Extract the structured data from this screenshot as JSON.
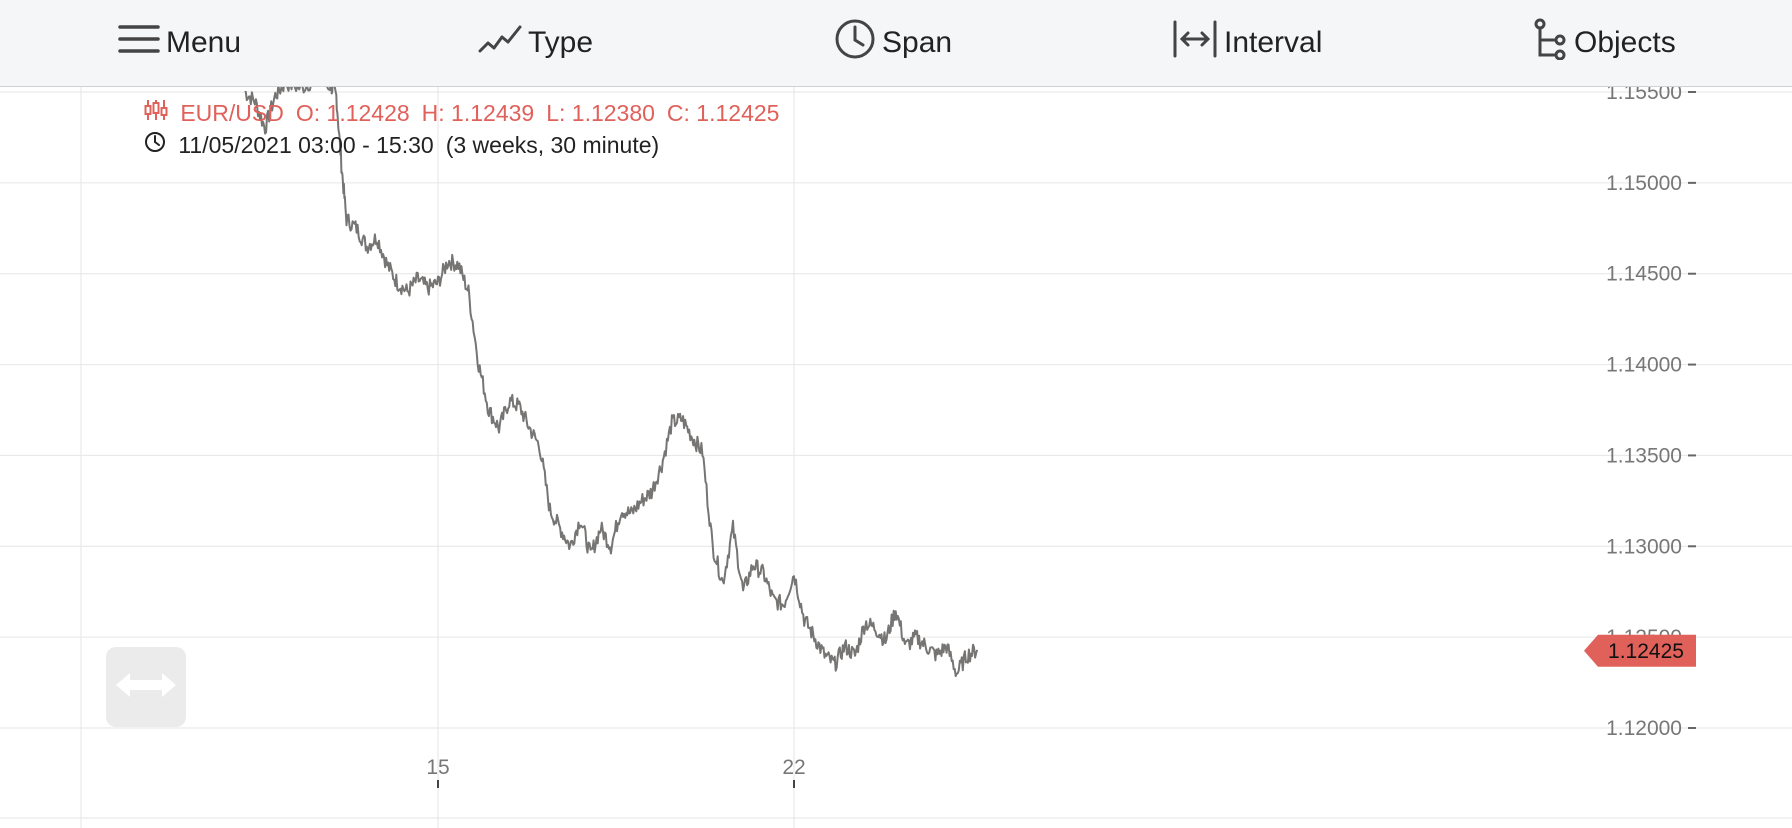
{
  "toolbar": {
    "menu_label": "Menu",
    "type_label": "Type",
    "span_label": "Span",
    "interval_label": "Interval",
    "objects_label": "Objects",
    "icons": [
      "menu-icon",
      "line-chart-icon",
      "clock-icon",
      "interval-arrows-icon",
      "objects-tree-icon"
    ]
  },
  "info": {
    "symbol": "EUR/USD",
    "open": "O: 1.12428",
    "high": "H: 1.12439",
    "low": "L: 1.12380",
    "close": "C: 1.12425",
    "range": "11/05/2021 03:00 - 15:30",
    "span_desc": "(3 weeks, 30 minute)"
  },
  "colors": {
    "series": "#777573",
    "accent": "#e0605a",
    "grid": "#e6e6e6",
    "toolbar_bg": "#f5f6f8"
  },
  "chart_data": {
    "type": "line",
    "symbol": "EUR/USD",
    "interval": "30 minute",
    "span": "3 weeks",
    "ylim": [
      1.1188,
      1.156
    ],
    "y_ticks": [
      "1.15500",
      "1.15000",
      "1.14500",
      "1.14000",
      "1.13500",
      "1.13000",
      "1.12500",
      "1.12000"
    ],
    "x_ticks": [
      {
        "label": "15",
        "day": 15
      },
      {
        "label": "22",
        "day": 22
      }
    ],
    "x_range_days": [
      11.2,
      30.5
    ],
    "last_value": "1.12425",
    "grid": true,
    "series": [
      {
        "x": [
          11.2,
          11.4,
          11.6,
          11.8,
          12.0,
          12.3,
          12.6,
          12.9,
          13.0,
          13.1,
          13.2,
          13.4,
          13.6,
          13.8,
          14.0,
          14.2,
          14.4,
          14.6,
          14.8,
          15.0,
          15.2,
          15.4,
          15.6,
          15.8,
          16.0,
          16.2,
          16.4,
          16.6,
          16.8,
          17.0,
          17.2,
          17.4,
          17.6,
          17.8,
          18.0,
          18.2,
          18.4,
          18.6,
          18.8,
          19.0,
          19.2,
          19.4,
          19.6,
          19.8,
          20.0,
          20.2,
          20.4,
          20.6,
          20.8,
          21.0,
          21.2,
          21.4,
          21.6,
          21.8,
          22.0,
          22.2,
          22.4,
          22.6,
          22.8,
          23.0,
          23.2,
          23.4,
          23.6,
          23.8,
          24.0,
          24.2,
          24.4,
          24.6,
          24.8,
          25.0,
          25.2,
          25.4,
          25.6
        ],
        "y": [
          1.155,
          1.1545,
          1.153,
          1.1548,
          1.1555,
          1.1552,
          1.1557,
          1.1553,
          1.1548,
          1.151,
          1.148,
          1.1475,
          1.1465,
          1.147,
          1.1455,
          1.1445,
          1.144,
          1.1447,
          1.1442,
          1.1445,
          1.1457,
          1.1455,
          1.144,
          1.14,
          1.1375,
          1.1365,
          1.138,
          1.1377,
          1.1365,
          1.1355,
          1.132,
          1.131,
          1.13,
          1.1315,
          1.1295,
          1.131,
          1.13,
          1.132,
          1.1318,
          1.1325,
          1.133,
          1.1345,
          1.1368,
          1.137,
          1.136,
          1.1352,
          1.13,
          1.128,
          1.131,
          1.1275,
          1.129,
          1.1285,
          1.127,
          1.1268,
          1.1285,
          1.126,
          1.125,
          1.124,
          1.1235,
          1.1245,
          1.124,
          1.1258,
          1.1255,
          1.1248,
          1.1265,
          1.1245,
          1.125,
          1.1245,
          1.124,
          1.1245,
          1.123,
          1.124,
          1.1243
        ]
      }
    ]
  }
}
